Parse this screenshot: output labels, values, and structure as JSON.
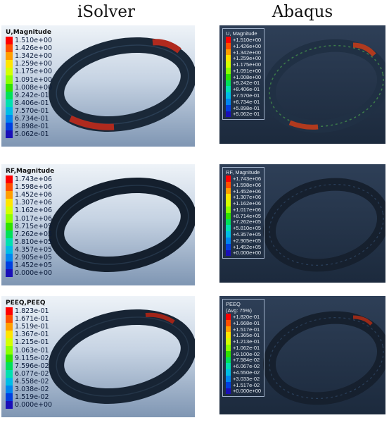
{
  "headers": {
    "left": "iSolver",
    "right": "Abaqus"
  },
  "colors": {
    "scale13": [
      "#ff0000",
      "#ff4f00",
      "#ff9e00",
      "#ffe500",
      "#d4ff00",
      "#8cff00",
      "#2fe300",
      "#00e05a",
      "#00e0b0",
      "#00bde6",
      "#0086f0",
      "#0040e0",
      "#1a0fb8"
    ],
    "scale14": [
      "#ff0000",
      "#ff4f00",
      "#ff9e00",
      "#ffe500",
      "#d4ff00",
      "#8cff00",
      "#2fe300",
      "#00e05a",
      "#00e0b0",
      "#00bde6",
      "#0086f0",
      "#0040e0",
      "#1a0fb8",
      "#1500a0"
    ]
  },
  "rows": [
    {
      "isolver": {
        "title": "U,Magnitude",
        "values": [
          "1.510e+00",
          "1.426e+00",
          "1.342e+00",
          "1.259e+00",
          "1.175e+00",
          "1.091e+00",
          "1.008e+00",
          "9.242e-01",
          "8.406e-01",
          "7.570e-01",
          "6.734e-01",
          "5.898e-01",
          "5.062e-01"
        ]
      },
      "abaqus": {
        "title": "U, Magnitude",
        "subtitle": "",
        "values": [
          "+1.510e+00",
          "+1.426e+00",
          "+1.342e+00",
          "+1.259e+00",
          "+1.175e+00",
          "+1.091e+00",
          "+1.008e+00",
          "+9.242e-01",
          "+8.406e-01",
          "+7.570e-01",
          "+6.734e-01",
          "+5.898e-01",
          "+5.062e-01"
        ]
      }
    },
    {
      "isolver": {
        "title": "RF,Magnitude",
        "values": [
          "1.743e+06",
          "1.598e+06",
          "1.452e+06",
          "1.307e+06",
          "1.162e+06",
          "1.017e+06",
          "8.715e+05",
          "7.262e+05",
          "5.810e+05",
          "4.357e+05",
          "2.905e+05",
          "1.452e+05",
          "0.000e+00"
        ]
      },
      "abaqus": {
        "title": "RF, Magnitude",
        "subtitle": "",
        "values": [
          "+1.743e+06",
          "+1.598e+06",
          "+1.452e+06",
          "+1.307e+06",
          "+1.162e+06",
          "+1.017e+06",
          "+8.714e+05",
          "+7.262e+05",
          "+5.810e+05",
          "+4.357e+05",
          "+2.905e+05",
          "+1.452e+05",
          "+0.000e+00"
        ]
      }
    },
    {
      "isolver": {
        "title": "PEEQ,PEEQ",
        "values": [
          "1.823e-01",
          "1.671e-01",
          "1.519e-01",
          "1.367e-01",
          "1.215e-01",
          "1.063e-01",
          "9.115e-02",
          "7.596e-02",
          "6.077e-02",
          "4.558e-02",
          "3.038e-02",
          "1.519e-02",
          "0.000e+00"
        ]
      },
      "abaqus": {
        "title": "PEEQ",
        "subtitle": "(Avg: 75%)",
        "values": [
          "+1.820e-01",
          "+1.668e-01",
          "+1.517e-01",
          "+1.365e-01",
          "+1.213e-01",
          "+1.062e-01",
          "+9.100e-02",
          "+7.584e-02",
          "+6.067e-02",
          "+4.550e-02",
          "+3.033e-02",
          "+1.517e-02",
          "+0.000e+00"
        ]
      }
    }
  ]
}
